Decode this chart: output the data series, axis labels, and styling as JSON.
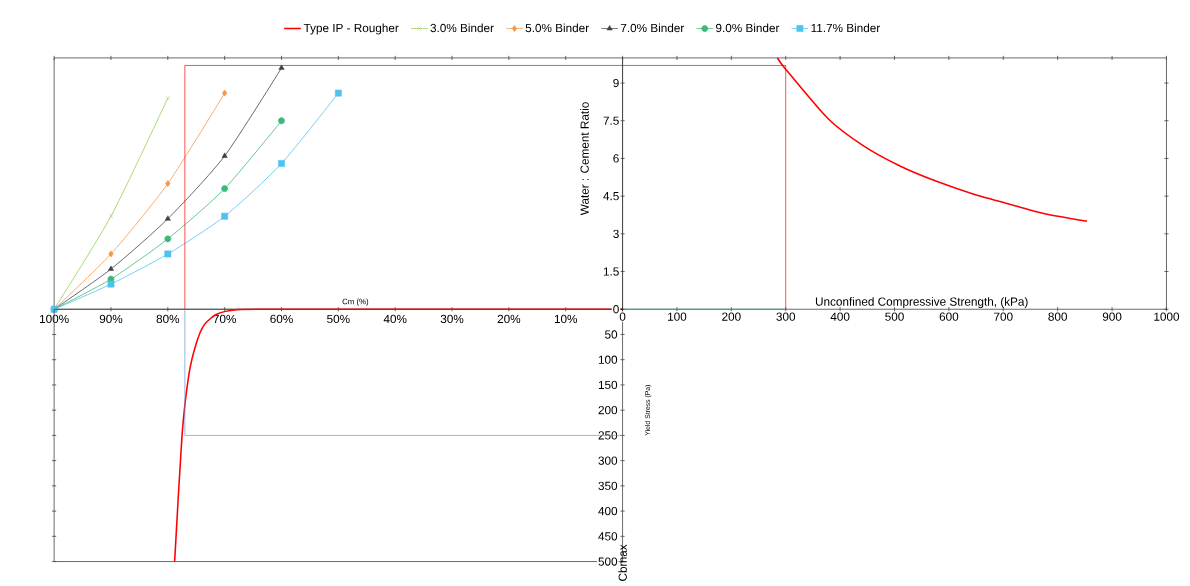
{
  "chart_data": [
    {
      "type": "line",
      "xlabel": "Cm (%)",
      "xlim": [
        100,
        0
      ],
      "ylim": [
        0,
        10
      ],
      "tick_labels": "x",
      "legend": "top",
      "xticks": [
        {
          "value": 100,
          "label": "100%"
        },
        {
          "value": 90,
          "label": "90%"
        },
        {
          "value": 80,
          "label": "80%"
        },
        {
          "value": 70,
          "label": "70%"
        },
        {
          "value": 60,
          "label": "60%"
        },
        {
          "value": 50,
          "label": "50%"
        },
        {
          "value": 40,
          "label": "40%"
        },
        {
          "value": 30,
          "label": "30%"
        },
        {
          "value": 20,
          "label": "20%"
        },
        {
          "value": 10,
          "label": "10%"
        }
      ],
      "series": [
        {
          "name": "3.0% Binder",
          "color": "#92d050",
          "marker": "cross",
          "x": [
            100,
            90,
            80
          ],
          "values": [
            0,
            3.7,
            8.4
          ]
        },
        {
          "name": "5.0% Binder",
          "color": "#f79646",
          "marker": "diamond",
          "x": [
            100,
            90,
            80,
            70
          ],
          "values": [
            0,
            2.2,
            5.0,
            8.6
          ]
        },
        {
          "name": "7.0% Binder",
          "color": "#404040",
          "marker": "triangle",
          "x": [
            100,
            90,
            80,
            70,
            60
          ],
          "values": [
            0,
            1.6,
            3.6,
            6.1,
            9.6
          ]
        },
        {
          "name": "9.0% Binder",
          "color": "#3cb878",
          "marker": "circle",
          "x": [
            100,
            90,
            80,
            70,
            60
          ],
          "values": [
            0,
            1.2,
            2.8,
            4.8,
            7.5
          ]
        },
        {
          "name": "11.7% Binder",
          "color": "#4ec3f0",
          "marker": "square",
          "x": [
            100,
            90,
            80,
            70,
            60,
            50
          ],
          "values": [
            0,
            1.0,
            2.2,
            3.7,
            5.8,
            8.6
          ]
        }
      ],
      "ref_lines": [
        {
          "axis": "x",
          "value": 77,
          "color": "#ff0000"
        },
        {
          "axis": "y",
          "value": 9.7,
          "color": "#ff0000"
        }
      ]
    },
    {
      "type": "line",
      "xlabel": "Unconfined Compressive Strength, (kPa)",
      "ylabel": "Water : Cement Ratio",
      "xlim": [
        0,
        1000
      ],
      "ylim": [
        0,
        10
      ],
      "xticks": [
        0,
        100,
        200,
        300,
        400,
        500,
        600,
        700,
        800,
        900,
        1000
      ],
      "yticks": [
        0,
        1.5,
        3,
        4.5,
        6,
        7.5,
        9
      ],
      "series": [
        {
          "name": "Type IP - Rougher",
          "color": "#ff0000",
          "x": [
            285,
            298,
            377,
            443,
            510,
            576,
            643,
            709,
            776,
            854
          ],
          "values": [
            10,
            9.6,
            7.6,
            6.5,
            5.7,
            5.1,
            4.6,
            4.2,
            3.8,
            3.5
          ]
        }
      ],
      "ref_lines": [
        {
          "axis": "x",
          "value": 300,
          "color": "#ff0000"
        },
        {
          "axis": "y",
          "value": 9.7,
          "color": "#ff0000"
        },
        {
          "axis": "y",
          "value": 0,
          "color": "#00b050"
        }
      ]
    },
    {
      "type": "line",
      "ylabel": "Yield Stress (Pa)",
      "xlim": [
        100,
        0
      ],
      "ylim": [
        500,
        0
      ],
      "tick_labels": "y",
      "yticks": [
        50,
        100,
        150,
        200,
        250,
        300,
        350,
        400,
        450,
        500
      ],
      "series": [
        {
          "color": "#ff0000",
          "x": [
            78.8,
            77.5,
            76.3,
            75,
            73.6,
            71.4,
            67.9,
            60,
            0
          ],
          "values": [
            500,
            250,
            130,
            68,
            31,
            10,
            1,
            0,
            0
          ]
        }
      ],
      "ref_lines": [
        {
          "axis": "x",
          "value": 77,
          "color": "#5b9bd5"
        },
        {
          "axis": "y",
          "value": 250,
          "color": "#5b9bd5"
        }
      ],
      "annotations": [
        "Cbmax"
      ]
    }
  ]
}
